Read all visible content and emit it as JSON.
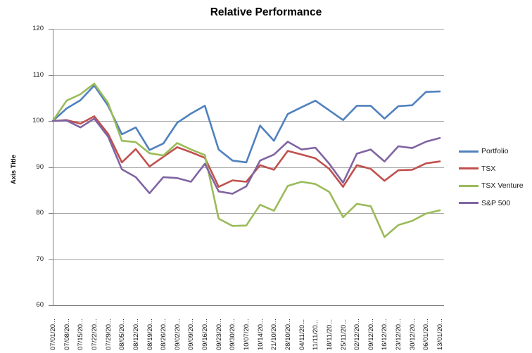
{
  "chart_data": {
    "type": "line",
    "title": "Relative Performance",
    "ylabel": "Axis Title",
    "xlabel": "",
    "ylim": [
      60,
      120
    ],
    "y_ticks": [
      120,
      110,
      100,
      90,
      80,
      70,
      60
    ],
    "grid": true,
    "legend_position": "right",
    "grid_color": "#A6A6A6",
    "axis_color": "#808080",
    "categories": [
      "07/01/20...",
      "07/08/20...",
      "07/15/20...",
      "07/22/20...",
      "07/29/20...",
      "08/05/20...",
      "08/12/20...",
      "08/19/20...",
      "08/26/20...",
      "09/02/20...",
      "09/09/20...",
      "09/16/20...",
      "09/23/20...",
      "09/30/20...",
      "10/07/20...",
      "10/14/20...",
      "21/10/20...",
      "28/10/20...",
      "04/11/20...",
      "11/11/20...",
      "18/11/20...",
      "25/11/20...",
      "02/12/20...",
      "09/12/20...",
      "16/12/20...",
      "23/12/20...",
      "30/12/20...",
      "06/01/20...",
      "13/01/20..."
    ],
    "series": [
      {
        "name": "Portfolio",
        "color": "#4F81BD",
        "values": [
          100,
          102.7,
          104.5,
          107.7,
          103.3,
          97.1,
          98.6,
          93.7,
          95.1,
          99.6,
          101.6,
          103.3,
          93.8,
          91.4,
          91.0,
          99.0,
          95.7,
          101.5,
          103.0,
          104.4,
          102.3,
          100.2,
          103.3,
          103.3,
          100.5,
          103.2,
          103.4,
          106.3,
          106.4
        ]
      },
      {
        "name": "TSX",
        "color": "#C0504D",
        "values": [
          100,
          100.2,
          99.4,
          101.0,
          97.2,
          91.0,
          93.9,
          90.1,
          92.2,
          94.3,
          93.2,
          92.0,
          85.7,
          87.1,
          86.8,
          90.4,
          89.4,
          93.5,
          92.7,
          91.9,
          89.6,
          85.7,
          90.4,
          89.6,
          87.0,
          89.3,
          89.4,
          90.8,
          91.2
        ]
      },
      {
        "name": "TSX Venture",
        "color": "#9BBB59",
        "values": [
          100,
          104.4,
          105.8,
          108.1,
          103.9,
          95.7,
          95.4,
          93.0,
          92.5,
          95.2,
          93.8,
          92.6,
          78.8,
          77.2,
          77.3,
          81.8,
          80.5,
          85.9,
          86.8,
          86.3,
          84.6,
          79.1,
          82.0,
          81.5,
          74.8,
          77.4,
          78.3,
          79.9,
          80.6
        ]
      },
      {
        "name": "S&P 500",
        "color": "#8064A2",
        "values": [
          100,
          100.1,
          98.6,
          100.5,
          96.6,
          89.5,
          87.8,
          84.3,
          87.8,
          87.6,
          86.8,
          90.7,
          84.7,
          84.2,
          85.8,
          91.4,
          92.7,
          95.5,
          93.8,
          94.2,
          90.7,
          86.6,
          92.9,
          93.8,
          91.2,
          94.5,
          94.1,
          95.5,
          96.3
        ]
      }
    ]
  }
}
